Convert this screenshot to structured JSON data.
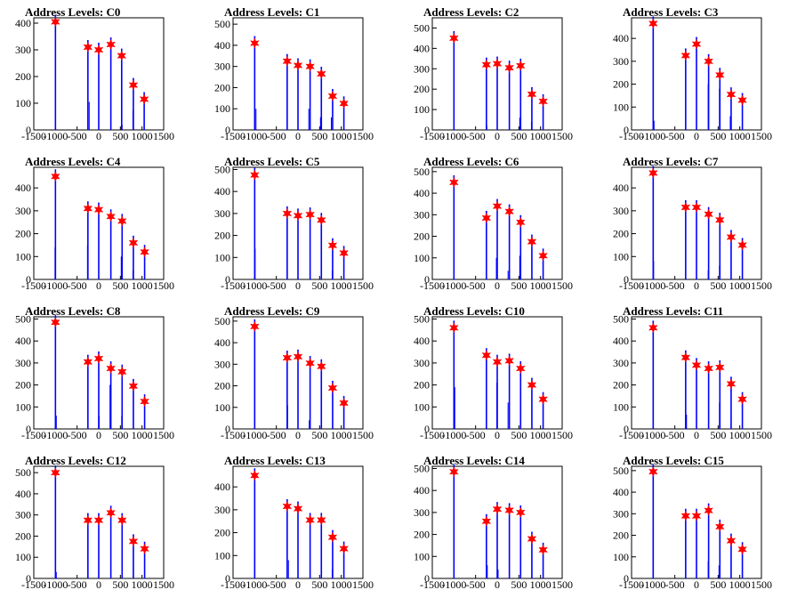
{
  "chart_data": [
    {
      "type": "histogram",
      "title": "Address Levels: C0",
      "xlim": [
        -1500,
        1500
      ],
      "ylim": [
        0,
        420
      ],
      "yticks": [
        0,
        100,
        200,
        300,
        400
      ],
      "xticks": [
        -1500,
        -1000,
        -500,
        0,
        500,
        1000,
        1500
      ],
      "peaks": [
        {
          "x": -1000,
          "y": 405
        },
        {
          "x": -250,
          "y": 310
        },
        {
          "x": 0,
          "y": 300
        },
        {
          "x": 280,
          "y": 320
        },
        {
          "x": 530,
          "y": 278
        },
        {
          "x": 800,
          "y": 168
        },
        {
          "x": 1050,
          "y": 115
        }
      ],
      "minor_bars": [
        {
          "x": -220,
          "y": 105
        },
        {
          "x": 540,
          "y": 20
        },
        {
          "x": 790,
          "y": 75
        }
      ]
    },
    {
      "type": "histogram",
      "title": "Address Levels: C1",
      "xlim": [
        -1500,
        1500
      ],
      "ylim": [
        0,
        530
      ],
      "yticks": [
        0,
        100,
        200,
        300,
        400,
        500
      ],
      "xticks": [
        -1500,
        -1000,
        -500,
        0,
        500,
        1000,
        1500
      ],
      "peaks": [
        {
          "x": -1000,
          "y": 410
        },
        {
          "x": -250,
          "y": 325
        },
        {
          "x": 0,
          "y": 305
        },
        {
          "x": 280,
          "y": 300
        },
        {
          "x": 540,
          "y": 265
        },
        {
          "x": 800,
          "y": 160
        },
        {
          "x": 1060,
          "y": 125
        }
      ],
      "minor_bars": [
        {
          "x": -970,
          "y": 100
        },
        {
          "x": 250,
          "y": 100
        },
        {
          "x": 520,
          "y": 60
        },
        {
          "x": 770,
          "y": 60
        }
      ]
    },
    {
      "type": "histogram",
      "title": "Address Levels: C2",
      "xlim": [
        -1500,
        1500
      ],
      "ylim": [
        0,
        550
      ],
      "yticks": [
        0,
        100,
        200,
        300,
        400,
        500
      ],
      "xticks": [
        -1500,
        -1000,
        -500,
        0,
        500,
        1000,
        1500
      ],
      "peaks": [
        {
          "x": -1000,
          "y": 450
        },
        {
          "x": -250,
          "y": 320
        },
        {
          "x": 0,
          "y": 325
        },
        {
          "x": 280,
          "y": 305
        },
        {
          "x": 540,
          "y": 315
        },
        {
          "x": 800,
          "y": 175
        },
        {
          "x": 1060,
          "y": 140
        }
      ],
      "minor_bars": [
        {
          "x": -240,
          "y": 20
        },
        {
          "x": 520,
          "y": 60
        },
        {
          "x": 790,
          "y": 40
        }
      ]
    },
    {
      "type": "histogram",
      "title": "Address Levels: C3",
      "xlim": [
        -1500,
        1500
      ],
      "ylim": [
        0,
        490
      ],
      "yticks": [
        0,
        100,
        200,
        300,
        400
      ],
      "xticks": [
        -1500,
        -1000,
        -500,
        0,
        500,
        1000,
        1500
      ],
      "peaks": [
        {
          "x": -1000,
          "y": 465
        },
        {
          "x": -250,
          "y": 325
        },
        {
          "x": 0,
          "y": 375
        },
        {
          "x": 280,
          "y": 300
        },
        {
          "x": 540,
          "y": 240
        },
        {
          "x": 800,
          "y": 155
        },
        {
          "x": 1060,
          "y": 130
        }
      ],
      "minor_bars": [
        {
          "x": -980,
          "y": 40
        },
        {
          "x": 270,
          "y": 200
        },
        {
          "x": 530,
          "y": 180
        },
        {
          "x": 780,
          "y": 60
        }
      ]
    },
    {
      "type": "histogram",
      "title": "Address Levels: C4",
      "xlim": [
        -1500,
        1500
      ],
      "ylim": [
        0,
        490
      ],
      "yticks": [
        0,
        100,
        200,
        300,
        400
      ],
      "xticks": [
        -1500,
        -1000,
        -500,
        0,
        500,
        1000,
        1500
      ],
      "peaks": [
        {
          "x": -1000,
          "y": 450
        },
        {
          "x": -250,
          "y": 310
        },
        {
          "x": 0,
          "y": 305
        },
        {
          "x": 280,
          "y": 275
        },
        {
          "x": 540,
          "y": 255
        },
        {
          "x": 800,
          "y": 160
        },
        {
          "x": 1060,
          "y": 120
        }
      ],
      "minor_bars": [
        {
          "x": -1010,
          "y": 140
        },
        {
          "x": -260,
          "y": 150
        },
        {
          "x": 520,
          "y": 100
        },
        {
          "x": 790,
          "y": 40
        }
      ]
    },
    {
      "type": "histogram",
      "title": "Address Levels: C5",
      "xlim": [
        -1500,
        1500
      ],
      "ylim": [
        0,
        510
      ],
      "yticks": [
        0,
        100,
        200,
        300,
        400,
        500
      ],
      "xticks": [
        -1500,
        -1000,
        -500,
        0,
        500,
        1000,
        1500
      ],
      "peaks": [
        {
          "x": -1000,
          "y": 475
        },
        {
          "x": -250,
          "y": 300
        },
        {
          "x": 0,
          "y": 290
        },
        {
          "x": 280,
          "y": 295
        },
        {
          "x": 540,
          "y": 270
        },
        {
          "x": 800,
          "y": 155
        },
        {
          "x": 1060,
          "y": 120
        }
      ],
      "minor_bars": [
        {
          "x": -990,
          "y": 140
        },
        {
          "x": 280,
          "y": 80
        },
        {
          "x": 790,
          "y": 40
        }
      ]
    },
    {
      "type": "histogram",
      "title": "Address Levels: C6",
      "xlim": [
        -1500,
        1500
      ],
      "ylim": [
        0,
        520
      ],
      "yticks": [
        0,
        100,
        200,
        300,
        400,
        500
      ],
      "xticks": [
        -1500,
        -1000,
        -500,
        0,
        500,
        1000,
        1500
      ],
      "peaks": [
        {
          "x": -1000,
          "y": 450
        },
        {
          "x": -250,
          "y": 285
        },
        {
          "x": 0,
          "y": 340
        },
        {
          "x": 280,
          "y": 315
        },
        {
          "x": 540,
          "y": 265
        },
        {
          "x": 800,
          "y": 175
        },
        {
          "x": 1060,
          "y": 110
        }
      ],
      "minor_bars": [
        {
          "x": -20,
          "y": 100
        },
        {
          "x": 250,
          "y": 40
        },
        {
          "x": 520,
          "y": 110
        }
      ]
    },
    {
      "type": "histogram",
      "title": "Address Levels: C7",
      "xlim": [
        -1500,
        1500
      ],
      "ylim": [
        0,
        490
      ],
      "yticks": [
        0,
        100,
        200,
        300,
        400
      ],
      "xticks": [
        -1500,
        -1000,
        -500,
        0,
        500,
        1000,
        1500
      ],
      "peaks": [
        {
          "x": -1000,
          "y": 465
        },
        {
          "x": -250,
          "y": 315
        },
        {
          "x": 0,
          "y": 315
        },
        {
          "x": 280,
          "y": 285
        },
        {
          "x": 540,
          "y": 260
        },
        {
          "x": 800,
          "y": 185
        },
        {
          "x": 1060,
          "y": 150
        }
      ],
      "minor_bars": [
        {
          "x": -990,
          "y": 80
        },
        {
          "x": 270,
          "y": 40
        },
        {
          "x": 530,
          "y": 60
        }
      ]
    },
    {
      "type": "histogram",
      "title": "Address Levels: C8",
      "xlim": [
        -1500,
        1500
      ],
      "ylim": [
        0,
        510
      ],
      "yticks": [
        0,
        100,
        200,
        300,
        400,
        500
      ],
      "xticks": [
        -1500,
        -1000,
        -500,
        0,
        500,
        1000,
        1500
      ],
      "peaks": [
        {
          "x": -1000,
          "y": 485
        },
        {
          "x": -250,
          "y": 305
        },
        {
          "x": 0,
          "y": 320
        },
        {
          "x": 280,
          "y": 275
        },
        {
          "x": 540,
          "y": 260
        },
        {
          "x": 800,
          "y": 195
        },
        {
          "x": 1060,
          "y": 125
        }
      ],
      "minor_bars": [
        {
          "x": -980,
          "y": 60
        },
        {
          "x": 10,
          "y": 60
        },
        {
          "x": 260,
          "y": 200
        },
        {
          "x": 530,
          "y": 60
        }
      ]
    },
    {
      "type": "histogram",
      "title": "Address Levels: C9",
      "xlim": [
        -1500,
        1500
      ],
      "ylim": [
        0,
        520
      ],
      "yticks": [
        0,
        100,
        200,
        300,
        400,
        500
      ],
      "xticks": [
        -1500,
        -1000,
        -500,
        0,
        500,
        1000,
        1500
      ],
      "peaks": [
        {
          "x": -1000,
          "y": 475
        },
        {
          "x": -250,
          "y": 330
        },
        {
          "x": 0,
          "y": 335
        },
        {
          "x": 280,
          "y": 305
        },
        {
          "x": 540,
          "y": 290
        },
        {
          "x": 800,
          "y": 190
        },
        {
          "x": 1060,
          "y": 120
        }
      ],
      "minor_bars": [
        {
          "x": -1000,
          "y": 290
        },
        {
          "x": -240,
          "y": 110
        },
        {
          "x": 260,
          "y": 40
        }
      ]
    },
    {
      "type": "histogram",
      "title": "Address Levels: C10",
      "xlim": [
        -1500,
        1500
      ],
      "ylim": [
        0,
        510
      ],
      "yticks": [
        0,
        100,
        200,
        300,
        400,
        500
      ],
      "xticks": [
        -1500,
        -1000,
        -500,
        0,
        500,
        1000,
        1500
      ],
      "peaks": [
        {
          "x": -1000,
          "y": 460
        },
        {
          "x": -250,
          "y": 335
        },
        {
          "x": 0,
          "y": 305
        },
        {
          "x": 280,
          "y": 310
        },
        {
          "x": 540,
          "y": 275
        },
        {
          "x": 800,
          "y": 200
        },
        {
          "x": 1060,
          "y": 135
        }
      ],
      "minor_bars": [
        {
          "x": -980,
          "y": 190
        },
        {
          "x": -10,
          "y": 210
        },
        {
          "x": 250,
          "y": 120
        },
        {
          "x": 540,
          "y": 30
        }
      ]
    },
    {
      "type": "histogram",
      "title": "Address Levels: C11",
      "xlim": [
        -1500,
        1500
      ],
      "ylim": [
        0,
        510
      ],
      "yticks": [
        0,
        100,
        200,
        300,
        400,
        500
      ],
      "xticks": [
        -1500,
        -1000,
        -500,
        0,
        500,
        1000,
        1500
      ],
      "peaks": [
        {
          "x": -1000,
          "y": 460
        },
        {
          "x": -250,
          "y": 325
        },
        {
          "x": 0,
          "y": 290
        },
        {
          "x": 280,
          "y": 275
        },
        {
          "x": 540,
          "y": 280
        },
        {
          "x": 800,
          "y": 205
        },
        {
          "x": 1060,
          "y": 135
        }
      ],
      "minor_bars": [
        {
          "x": -230,
          "y": 65
        },
        {
          "x": 0,
          "y": 85
        },
        {
          "x": 530,
          "y": 120
        },
        {
          "x": 800,
          "y": 40
        }
      ]
    },
    {
      "type": "histogram",
      "title": "Address Levels: C12",
      "xlim": [
        -1500,
        1500
      ],
      "ylim": [
        0,
        530
      ],
      "yticks": [
        0,
        100,
        200,
        300,
        400,
        500
      ],
      "xticks": [
        -1500,
        -1000,
        -500,
        0,
        500,
        1000,
        1500
      ],
      "peaks": [
        {
          "x": -1000,
          "y": 500
        },
        {
          "x": -250,
          "y": 275
        },
        {
          "x": 0,
          "y": 275
        },
        {
          "x": 280,
          "y": 310
        },
        {
          "x": 540,
          "y": 275
        },
        {
          "x": 800,
          "y": 175
        },
        {
          "x": 1060,
          "y": 140
        }
      ],
      "minor_bars": [
        {
          "x": -980,
          "y": 30
        },
        {
          "x": 800,
          "y": 60
        }
      ]
    },
    {
      "type": "histogram",
      "title": "Address Levels: C13",
      "xlim": [
        -1500,
        1500
      ],
      "ylim": [
        0,
        490
      ],
      "yticks": [
        0,
        100,
        200,
        300,
        400
      ],
      "xticks": [
        -1500,
        -1000,
        -500,
        0,
        500,
        1000,
        1500
      ],
      "peaks": [
        {
          "x": -1000,
          "y": 450
        },
        {
          "x": -250,
          "y": 315
        },
        {
          "x": 0,
          "y": 305
        },
        {
          "x": 280,
          "y": 255
        },
        {
          "x": 540,
          "y": 255
        },
        {
          "x": 800,
          "y": 180
        },
        {
          "x": 1060,
          "y": 130
        }
      ],
      "minor_bars": [
        {
          "x": -1000,
          "y": 90
        },
        {
          "x": -220,
          "y": 80
        },
        {
          "x": 790,
          "y": 40
        }
      ]
    },
    {
      "type": "histogram",
      "title": "Address Levels: C14",
      "xlim": [
        -1500,
        1500
      ],
      "ylim": [
        0,
        510
      ],
      "yticks": [
        0,
        100,
        200,
        300,
        400,
        500
      ],
      "xticks": [
        -1500,
        -1000,
        -500,
        0,
        500,
        1000,
        1500
      ],
      "peaks": [
        {
          "x": -1000,
          "y": 485
        },
        {
          "x": -250,
          "y": 260
        },
        {
          "x": 0,
          "y": 315
        },
        {
          "x": 280,
          "y": 310
        },
        {
          "x": 540,
          "y": 300
        },
        {
          "x": 800,
          "y": 180
        },
        {
          "x": 1060,
          "y": 130
        }
      ],
      "minor_bars": [
        {
          "x": -230,
          "y": 60
        },
        {
          "x": 20,
          "y": 40
        },
        {
          "x": 540,
          "y": 40
        }
      ]
    },
    {
      "type": "histogram",
      "title": "Address Levels: C15",
      "xlim": [
        -1500,
        1500
      ],
      "ylim": [
        0,
        520
      ],
      "yticks": [
        0,
        100,
        200,
        300,
        400,
        500
      ],
      "xticks": [
        -1500,
        -1000,
        -500,
        0,
        500,
        1000,
        1500
      ],
      "peaks": [
        {
          "x": -1000,
          "y": 495
        },
        {
          "x": -250,
          "y": 290
        },
        {
          "x": 0,
          "y": 290
        },
        {
          "x": 280,
          "y": 315
        },
        {
          "x": 540,
          "y": 240
        },
        {
          "x": 800,
          "y": 175
        },
        {
          "x": 1060,
          "y": 135
        }
      ],
      "minor_bars": [
        {
          "x": -1000,
          "y": 210
        },
        {
          "x": 270,
          "y": 80
        },
        {
          "x": 520,
          "y": 60
        }
      ]
    }
  ],
  "style": {
    "bar_color": "#0000ff",
    "marker_color": "#ff0000",
    "axis_color": "#000000"
  }
}
